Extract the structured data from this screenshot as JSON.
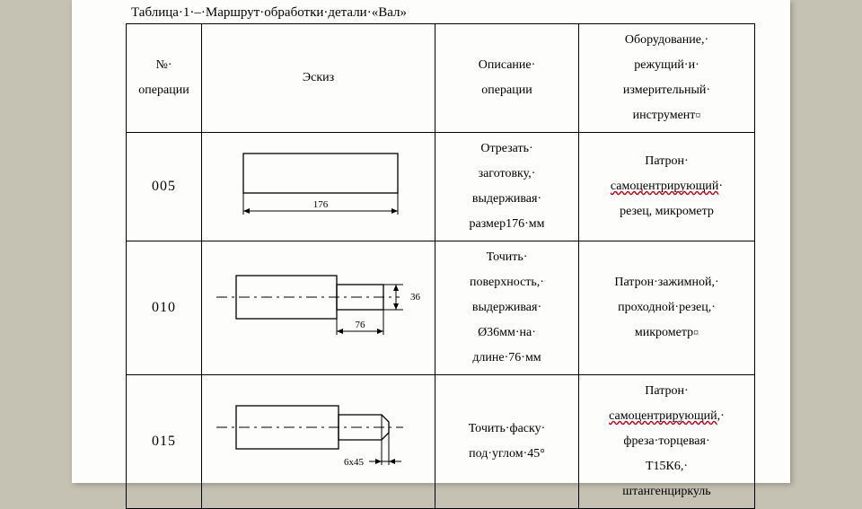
{
  "caption": "Таблица·1·–·Маршрут·обработки·детали·«Вал»",
  "headers": {
    "col1": "№·\nоперации",
    "col2": "Эскиз",
    "col3": "Описание·\nоперации",
    "col4_pre": "Оборудование,·\nрежущий·и·\nизмерительный·\nинструмент"
  },
  "rows": [
    {
      "num": "005",
      "desc": "Отрезать·\nзаготовку,·\nвыдерживая·\nразмер176·мм",
      "equip_line1": "Патрон·",
      "equip_squiggle": "самоцентрирующий",
      "equip_rest": "·\nрезец, микрометр",
      "sketch": "s1",
      "dim176": "176"
    },
    {
      "num": "010",
      "desc": "Точить·\nповерхность,·\nвыдерживая·\nØ36мм·на·\nдлине·76·мм",
      "equip_plain": "Патрон·зажимной,·\nпроходной·резец,·\nмикрометр",
      "equip_mark": true,
      "sketch": "s2",
      "dim36": "36",
      "dim76": "76"
    },
    {
      "num": "015",
      "desc": "Точить·фаску·\nпод·углом·45°",
      "equip_line1": "Патрон·",
      "equip_squiggle": "самоцентрирующий",
      "equip_rest": ",·\nфреза·торцевая·\nТ15К6,·\nштангенциркуль",
      "sketch": "s3",
      "dim6x45": "6х45"
    }
  ],
  "svg": {
    "stroke": "#000000",
    "fill": "#ffffff",
    "dim_font": 11
  }
}
